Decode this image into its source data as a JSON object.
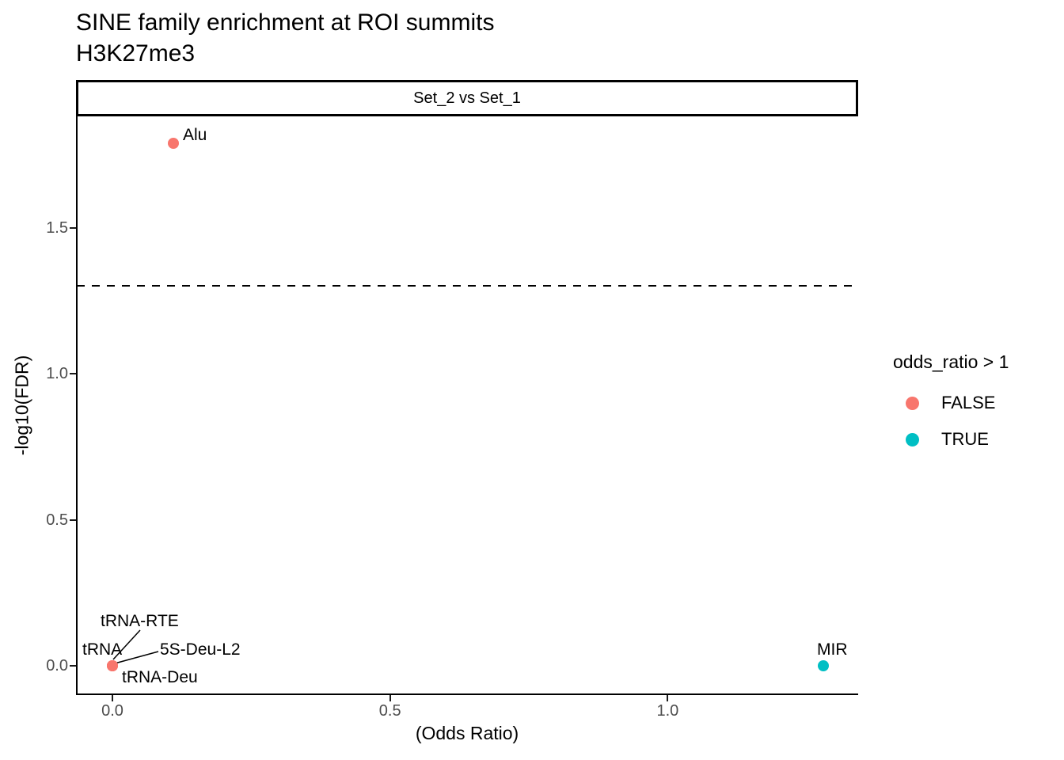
{
  "title": "SINE family enrichment at ROI summits",
  "subtitle": "H3K27me3",
  "facet_strip": "Set_2 vs Set_1",
  "chart_data": {
    "type": "scatter",
    "title": "SINE family enrichment at ROI summits",
    "subtitle": "H3K27me3",
    "facet_label": "Set_2 vs Set_1",
    "xlabel": "(Odds Ratio)",
    "ylabel": "-log10(FDR)",
    "legend_title": "odds_ratio > 1",
    "legend_position": "right",
    "grid": false,
    "xlim": [
      -0.064,
      1.342
    ],
    "ylim": [
      -0.098,
      1.883
    ],
    "x_ticks": [
      {
        "label": "0.0",
        "value": 0
      },
      {
        "label": "0.5",
        "value": 0.5
      },
      {
        "label": "1.0",
        "value": 1
      }
    ],
    "y_ticks": [
      {
        "label": "0.0",
        "value": 0
      },
      {
        "label": "0.5",
        "value": 0.5
      },
      {
        "label": "1.0",
        "value": 1
      },
      {
        "label": "1.5",
        "value": 1.5
      }
    ],
    "threshold_line": {
      "y": 1.301,
      "style": "dashed",
      "color": "#000000"
    },
    "series": [
      {
        "name": "FALSE",
        "color": "#F8766D",
        "points": [
          {
            "label": "Alu",
            "x": 0.11,
            "y": 1.79
          },
          {
            "label": "tRNA",
            "x": 0,
            "y": 0
          },
          {
            "label": "tRNA-RTE",
            "x": 0,
            "y": 0
          },
          {
            "label": "5S-Deu-L2",
            "x": 0,
            "y": 0
          },
          {
            "label": "tRNA-Deu",
            "x": 0,
            "y": 0
          }
        ]
      },
      {
        "name": "TRUE",
        "color": "#00BFC4",
        "points": [
          {
            "label": "MIR",
            "x": 1.28,
            "y": 0
          }
        ]
      }
    ]
  }
}
